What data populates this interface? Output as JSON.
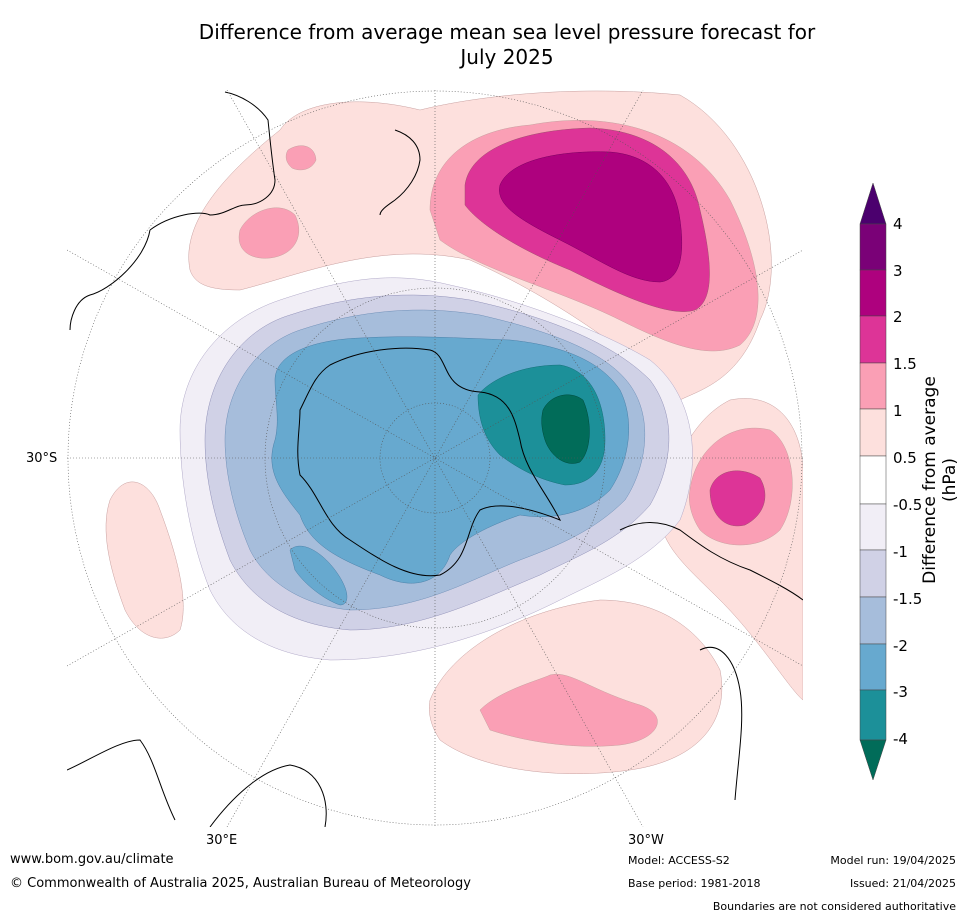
{
  "title_line1": "Difference from average mean sea level pressure forecast for",
  "title_line2": "July 2025",
  "lat_label": "30°S",
  "lon_label_e": "30°E",
  "lon_label_w": "30°W",
  "colorbar": {
    "label": "Difference from average (hPa)",
    "levels": [
      "4",
      "3",
      "2",
      "1.5",
      "1",
      "0.5",
      "-0.5",
      "-1",
      "-1.5",
      "-2",
      "-3",
      "-4"
    ],
    "colors": {
      "gt4": "#4b006e",
      "3_4": "#7a0177",
      "2_3": "#ae017e",
      "1.5_2": "#dd3497",
      "1_1.5": "#fa9fb5",
      "0.5_1": "#fde0dd",
      "neutral": "#ffffff",
      "-1_-0.5": "#f1eef6",
      "-1.5_-1": "#d0d1e6",
      "-2_-1.5": "#a6bddb",
      "-3_-2": "#67a9cf",
      "-4_-3": "#1c9099",
      "lt-4": "#016c59"
    }
  },
  "footer": {
    "url": "www.bom.gov.au/climate",
    "copyright": "© Commonwealth of Australia 2025, Australian Bureau of Meteorology",
    "model": "Model: ACCESS-S2",
    "base_period": "Base period: 1981-2018",
    "model_run": "Model run: 19/04/2025",
    "issued": "Issued: 21/04/2025",
    "disclaimer": "Boundaries are not considered authoritative"
  }
}
